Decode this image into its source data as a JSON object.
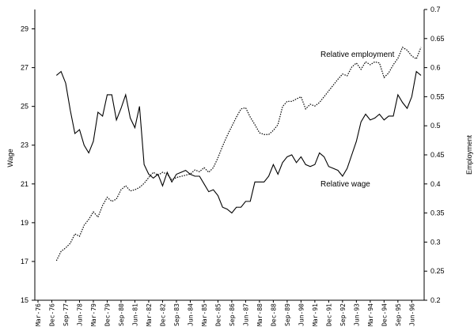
{
  "chart_data": {
    "type": "line",
    "ylabel": "Wage",
    "y2label": "Employment",
    "categories": [
      "Mar-76",
      null,
      null,
      "Dec-76",
      null,
      null,
      "Sep-77",
      null,
      null,
      "Jun-78",
      null,
      null,
      "Mar-79",
      null,
      null,
      "Dec-79",
      null,
      null,
      "Sep-80",
      null,
      null,
      "Jun-81",
      null,
      null,
      "Mar-82",
      null,
      null,
      "Dec-82",
      null,
      null,
      "Sep-83",
      null,
      null,
      "Jun-84",
      null,
      null,
      "Mar-85",
      null,
      null,
      "Dec-85",
      null,
      null,
      "Sep-86",
      null,
      null,
      "Jun-87",
      null,
      null,
      "Mar-88",
      null,
      null,
      "Dec-88",
      null,
      null,
      "Sep-89",
      null,
      null,
      "Jun-90",
      null,
      null,
      "Mar-91",
      null,
      null,
      "Dec-91",
      null,
      null,
      "Sep-92",
      null,
      null,
      "Jun-93",
      null,
      null,
      "Mar-94",
      null,
      null,
      "Dec-94",
      null,
      null,
      "Sep-95",
      null,
      null,
      "Jun-96",
      null,
      null
    ],
    "series": [
      {
        "name": "Relative wage",
        "color": "#000000",
        "dash": false,
        "values": [
          null,
          null,
          null,
          null,
          26.6,
          26.8,
          26.2,
          24.8,
          23.6,
          23.8,
          23,
          22.6,
          23.2,
          24.7,
          24.5,
          25.6,
          25.6,
          24.3,
          24.9,
          25.6,
          24.4,
          23.9,
          25,
          22,
          21.5,
          21.3,
          21.5,
          20.9,
          21.6,
          21.1,
          21.5,
          21.6,
          21.7,
          21.5,
          21.4,
          21.4,
          21,
          20.6,
          20.7,
          20.4,
          19.8,
          19.7,
          19.5,
          19.8,
          19.8,
          20.1,
          20.1,
          21.1,
          21.1,
          21.1,
          21.4,
          22,
          21.5,
          22.1,
          22.4,
          22.5,
          22.1,
          22.4,
          22,
          21.9,
          22,
          22.6,
          22.4,
          21.9,
          21.8,
          21.7,
          21.4,
          21.8,
          22.5,
          23.2,
          24.2,
          24.6,
          24.3,
          24.4,
          24.6,
          24.3,
          24.5,
          24.5,
          25.6,
          25.2,
          24.9,
          25.5,
          26.8,
          26.6
        ]
      },
      {
        "name": "Relative employment",
        "color": "#000000",
        "dash": true,
        "axis": "y2",
        "values": [
          null,
          null,
          null,
          null,
          0.268,
          0.284,
          0.29,
          0.298,
          0.314,
          0.31,
          0.329,
          0.339,
          0.352,
          0.343,
          0.363,
          0.377,
          0.37,
          0.374,
          0.39,
          0.397,
          0.388,
          0.39,
          0.394,
          0.401,
          0.411,
          0.42,
          0.415,
          0.42,
          0.417,
          0.407,
          0.411,
          0.413,
          0.415,
          0.417,
          0.424,
          0.421,
          0.428,
          0.42,
          0.428,
          0.445,
          0.465,
          0.483,
          0.499,
          0.515,
          0.529,
          0.531,
          0.515,
          0.502,
          0.488,
          0.485,
          0.485,
          0.492,
          0.502,
          0.533,
          0.542,
          0.542,
          0.546,
          0.55,
          0.529,
          0.537,
          0.534,
          0.54,
          0.55,
          0.56,
          0.57,
          0.58,
          0.589,
          0.586,
          0.601,
          0.608,
          0.597,
          0.61,
          0.605,
          0.61,
          0.608,
          0.583,
          0.591,
          0.605,
          0.616,
          0.635,
          0.63,
          0.62,
          0.615,
          0.635
        ]
      }
    ],
    "ylim": [
      15,
      30
    ],
    "yticks": [
      15,
      17,
      19,
      21,
      23,
      25,
      27,
      29
    ],
    "y2lim": [
      0.2,
      0.7
    ],
    "y2ticks": [
      0.2,
      0.25,
      0.3,
      0.35,
      0.4,
      0.45,
      0.5,
      0.55,
      0.6,
      0.65,
      0.7
    ],
    "grid": false
  }
}
